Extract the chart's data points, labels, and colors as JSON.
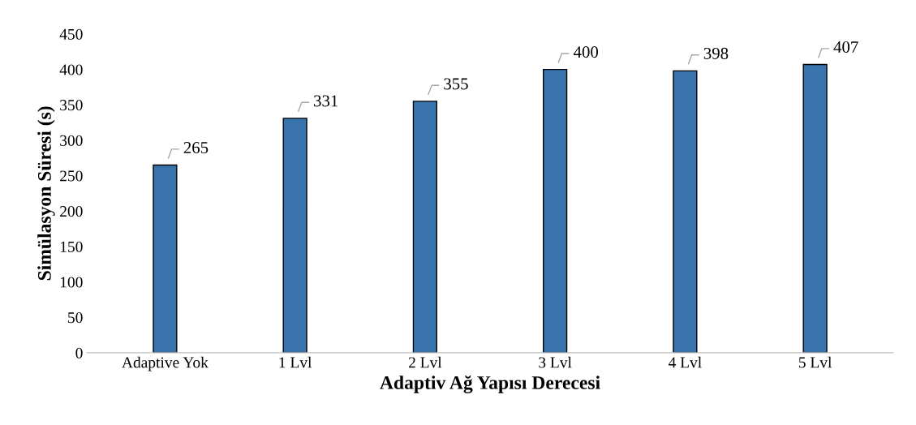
{
  "chart_data": {
    "type": "bar",
    "xlabel": "Adaptiv Ağ Yapısı Derecesi",
    "ylabel": "Simülasyon Süresi (s)",
    "categories": [
      "Adaptive Yok",
      "1 Lvl",
      "2 Lvl",
      "3 Lvl",
      "4 Lvl",
      "5 Lvl"
    ],
    "values": [
      265,
      331,
      355,
      400,
      398,
      407
    ],
    "color": "#3a74ad",
    "ylim": [
      0,
      450
    ],
    "yticks": [
      0,
      50,
      100,
      150,
      200,
      250,
      300,
      350,
      400,
      450
    ],
    "data_labels": true,
    "grid": false,
    "legend": false
  }
}
